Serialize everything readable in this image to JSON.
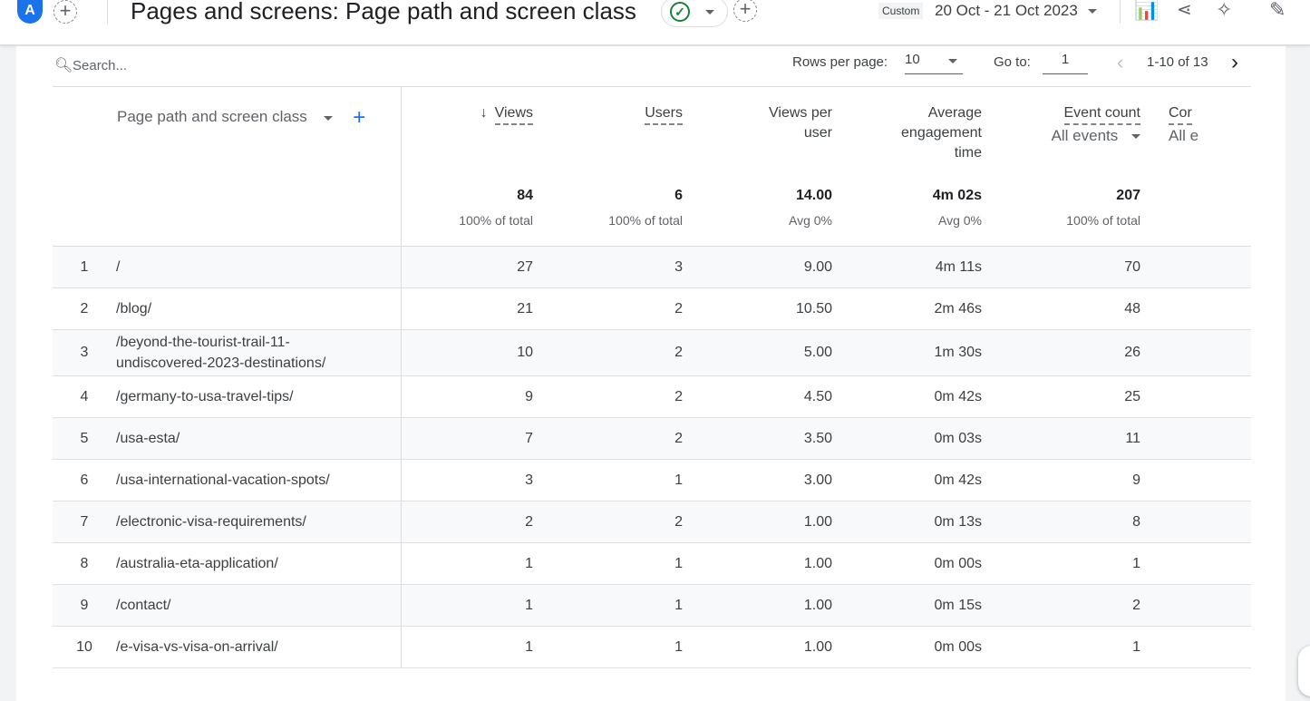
{
  "header": {
    "avatar": "A",
    "title": "Pages and screens: Page path and screen class",
    "date_preset": "Custom",
    "date_range": "20 Oct - 21 Oct 2023"
  },
  "toolbar": {
    "search_placeholder": "Search...",
    "rows_per_page_label": "Rows per page:",
    "rows_per_page": "10",
    "goto_label": "Go to:",
    "goto_value": "1",
    "range": "1-10 of 13"
  },
  "table": {
    "dimension_header": "Page path and screen class",
    "columns": [
      {
        "label": "Views",
        "sort": "descending",
        "total": "84",
        "total_sub": "100% of total"
      },
      {
        "label": "Users",
        "total": "6",
        "total_sub": "100% of total"
      },
      {
        "label": "Views per user",
        "total": "14.00",
        "total_sub": "Avg 0%"
      },
      {
        "label": "Average engagement time",
        "total": "4m 02s",
        "total_sub": "Avg 0%"
      },
      {
        "label": "Event count",
        "filter": "All events",
        "total": "207",
        "total_sub": "100% of total"
      },
      {
        "label": "Cor",
        "filter": "All e"
      }
    ],
    "rows": [
      {
        "idx": "1",
        "path": "/",
        "views": "27",
        "users": "3",
        "vpu": "9.00",
        "aet": "4m 11s",
        "events": "70"
      },
      {
        "idx": "2",
        "path": "/blog/",
        "views": "21",
        "users": "2",
        "vpu": "10.50",
        "aet": "2m 46s",
        "events": "48"
      },
      {
        "idx": "3",
        "path": "/beyond-the-tourist-trail-11-undiscovered-2023-destinations/",
        "views": "10",
        "users": "2",
        "vpu": "5.00",
        "aet": "1m 30s",
        "events": "26"
      },
      {
        "idx": "4",
        "path": "/germany-to-usa-travel-tips/",
        "views": "9",
        "users": "2",
        "vpu": "4.50",
        "aet": "0m 42s",
        "events": "25"
      },
      {
        "idx": "5",
        "path": "/usa-esta/",
        "views": "7",
        "users": "2",
        "vpu": "3.50",
        "aet": "0m 03s",
        "events": "11"
      },
      {
        "idx": "6",
        "path": "/usa-international-vacation-spots/",
        "views": "3",
        "users": "1",
        "vpu": "3.00",
        "aet": "0m 42s",
        "events": "9"
      },
      {
        "idx": "7",
        "path": "/electronic-visa-requirements/",
        "views": "2",
        "users": "2",
        "vpu": "1.00",
        "aet": "0m 13s",
        "events": "8"
      },
      {
        "idx": "8",
        "path": "/australia-eta-application/",
        "views": "1",
        "users": "1",
        "vpu": "1.00",
        "aet": "0m 00s",
        "events": "1"
      },
      {
        "idx": "9",
        "path": "/contact/",
        "views": "1",
        "users": "1",
        "vpu": "1.00",
        "aet": "0m 15s",
        "events": "2"
      },
      {
        "idx": "10",
        "path": "/e-visa-vs-visa-on-arrival/",
        "views": "1",
        "users": "1",
        "vpu": "1.00",
        "aet": "0m 00s",
        "events": "1"
      }
    ]
  },
  "colors": {
    "accent": "#1a73e8",
    "success": "#188038"
  }
}
